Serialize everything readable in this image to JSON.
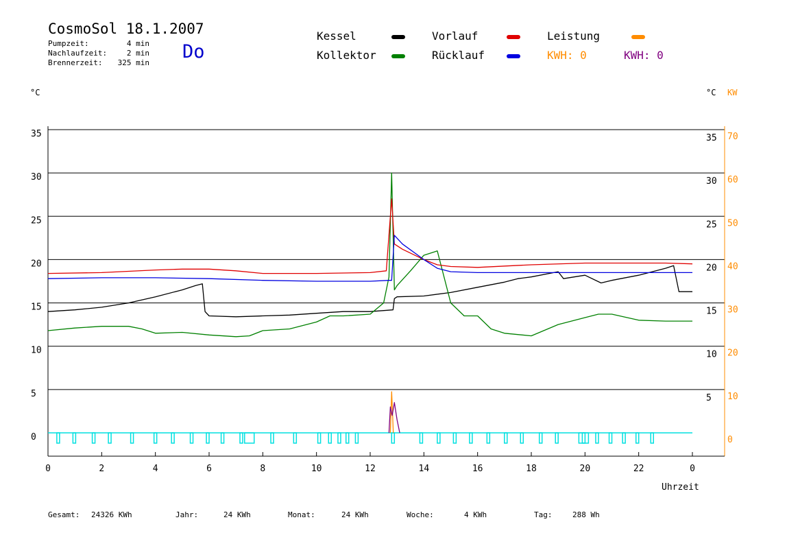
{
  "header": {
    "title": "CosmoSol 18.1.2007",
    "day": "Do",
    "stats": [
      {
        "label": "Pumpzeit:",
        "value": "4 min"
      },
      {
        "label": "Nachlaufzeit:",
        "value": "2 min"
      },
      {
        "label": "Brennerzeit:",
        "value": "325 min"
      }
    ]
  },
  "legend": {
    "kessel": {
      "label": "Kessel",
      "color": "#000000"
    },
    "kollektor": {
      "label": "Kollektor",
      "color": "#008000"
    },
    "vorlauf": {
      "label": "Vorlauf",
      "color": "#e00000"
    },
    "ruecklauf": {
      "label": "Rücklauf",
      "color": "#0000e0"
    },
    "leistung": {
      "label": "Leistung",
      "color": "#ff8c00"
    },
    "kwh_orange": {
      "label": "KWH: 0",
      "color": "#ff8c00"
    },
    "kwh_purple": {
      "label": "KWH: 0",
      "color": "#800080"
    }
  },
  "units": {
    "left": "°C",
    "right_c": "°C",
    "right_kw": "KW",
    "x_title": "Uhrzeit"
  },
  "footer": [
    {
      "label": "Gesamt:",
      "value": "24326 KWh"
    },
    {
      "label": "Jahr:",
      "value": "24 KWh"
    },
    {
      "label": "Monat:",
      "value": "24 KWh"
    },
    {
      "label": "Woche:",
      "value": "4 KWh"
    },
    {
      "label": "Tag:",
      "value": "288 Wh"
    }
  ],
  "chart_data": {
    "type": "line",
    "title": "CosmoSol 18.1.2007",
    "xlabel": "Uhrzeit",
    "ylabel": "°C",
    "xlim": [
      0,
      24
    ],
    "ylim": [
      0,
      35
    ],
    "y2lim": [
      0,
      70
    ],
    "grid": "horizontal",
    "x_ticks": [
      "0",
      "2",
      "4",
      "6",
      "8",
      "10",
      "12",
      "14",
      "16",
      "18",
      "20",
      "22",
      "0"
    ],
    "y_ticks": [
      "0",
      "5",
      "10",
      "15",
      "20",
      "25",
      "30",
      "35"
    ],
    "y_ticks_right": [
      "5",
      "10",
      "15",
      "20",
      "25",
      "30",
      "35"
    ],
    "y2_ticks": [
      "0",
      "10",
      "20",
      "30",
      "40",
      "50",
      "60",
      "70"
    ],
    "series": [
      {
        "name": "Kessel",
        "color": "#000000",
        "x": [
          0,
          1,
          2,
          3,
          4,
          5,
          5.5,
          5.75,
          5.85,
          6,
          7,
          8,
          9,
          10,
          11,
          12,
          12.85,
          12.9,
          13,
          14,
          15,
          16,
          17,
          17.5,
          18,
          19,
          19.2,
          20,
          20.6,
          21,
          22,
          23,
          23.3,
          23.5,
          24
        ],
        "values": [
          14,
          14.2,
          14.5,
          15,
          15.7,
          16.5,
          17,
          17.2,
          14,
          13.5,
          13.4,
          13.5,
          13.6,
          13.8,
          14,
          14,
          14.2,
          15.5,
          15.7,
          15.8,
          16.2,
          16.8,
          17.4,
          17.8,
          18,
          18.6,
          17.8,
          18.2,
          17.3,
          17.6,
          18.2,
          19,
          19.3,
          16.3,
          16.3
        ]
      },
      {
        "name": "Kollektor",
        "color": "#008000",
        "x": [
          0,
          1,
          2,
          3,
          3.5,
          4,
          5,
          6,
          7,
          7.5,
          8,
          9,
          10,
          10.5,
          11,
          12,
          12.5,
          12.7,
          12.8,
          12.9,
          13,
          13.5,
          14,
          14.5,
          15,
          15.5,
          16,
          16.5,
          17,
          18,
          19,
          20,
          20.5,
          21,
          22,
          23,
          24
        ],
        "values": [
          11.8,
          12.1,
          12.3,
          12.3,
          12,
          11.5,
          11.6,
          11.3,
          11.1,
          11.2,
          11.8,
          12,
          12.8,
          13.5,
          13.5,
          13.7,
          15,
          18,
          30,
          16.5,
          17,
          18.7,
          20.5,
          21,
          15,
          13.5,
          13.5,
          12,
          11.5,
          11.2,
          12.5,
          13.3,
          13.7,
          13.7,
          13,
          12.9,
          12.9
        ]
      },
      {
        "name": "Vorlauf",
        "color": "#e00000",
        "x": [
          0,
          2,
          4,
          5,
          6,
          7,
          8,
          10,
          12,
          12.6,
          12.8,
          12.9,
          13.2,
          14,
          14.5,
          15,
          16,
          18,
          20,
          22,
          23,
          24
        ],
        "values": [
          18.4,
          18.5,
          18.8,
          18.9,
          18.9,
          18.7,
          18.4,
          18.4,
          18.5,
          18.7,
          27,
          21.8,
          21.2,
          20,
          19.4,
          19.2,
          19.1,
          19.4,
          19.6,
          19.6,
          19.6,
          19.5
        ]
      },
      {
        "name": "Rücklauf",
        "color": "#0000e0",
        "x": [
          0,
          2,
          4,
          6,
          8,
          10,
          12,
          12.7,
          12.8,
          12.9,
          13.2,
          14,
          14.5,
          15,
          16,
          18,
          20,
          22,
          24
        ],
        "values": [
          17.8,
          17.9,
          17.9,
          17.8,
          17.6,
          17.5,
          17.5,
          17.6,
          17.6,
          22.8,
          21.8,
          20,
          19,
          18.6,
          18.5,
          18.5,
          18.5,
          18.5,
          18.5
        ]
      },
      {
        "name": "Leistung",
        "color": "#ff8c00",
        "x": [
          12.75,
          12.8,
          12.83,
          12.86
        ],
        "values": [
          0,
          9.5,
          5,
          0
        ],
        "axis": "right_kw"
      },
      {
        "name": "KWH",
        "color": "#800080",
        "x": [
          12.7,
          12.75,
          12.82,
          12.9,
          13,
          13.1
        ],
        "values": [
          0,
          3,
          2,
          3.5,
          1.5,
          0
        ]
      }
    ],
    "pump_markers_x": [
      0.38,
      0.98,
      1.7,
      2.3,
      3.13,
      4.0,
      4.65,
      5.35,
      5.95,
      6.5,
      7.2,
      8.35,
      9.2,
      10.1,
      10.5,
      10.85,
      11.15,
      11.5,
      12.85,
      13.9,
      14.55,
      15.15,
      15.75,
      16.4,
      17.05,
      17.65,
      18.35,
      18.95,
      19.95,
      20.45,
      20.95,
      21.45,
      21.95,
      22.5
    ],
    "pump_markers_wide_x": [
      7.5,
      19.95
    ],
    "pump_color": "#00e0e0"
  }
}
